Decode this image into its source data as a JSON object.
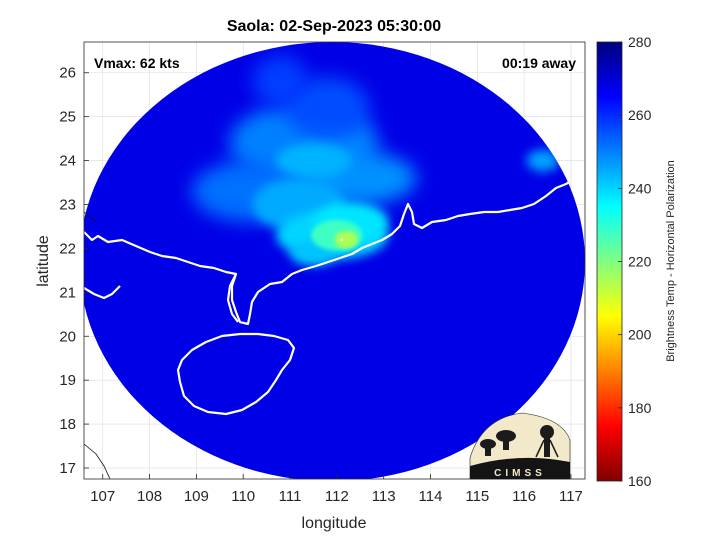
{
  "chart_data": {
    "type": "heatmap",
    "title": "Saola: 02-Sep-2023 05:30:00",
    "xlabel": "longitude",
    "ylabel": "latitude",
    "xlim": [
      106.6,
      117.3
    ],
    "ylim": [
      16.75,
      26.7
    ],
    "xticks": [
      "107",
      "108",
      "109",
      "110",
      "111",
      "112",
      "113",
      "114",
      "115",
      "116",
      "117"
    ],
    "yticks": [
      "17",
      "18",
      "19",
      "20",
      "21",
      "22",
      "23",
      "24",
      "25",
      "26"
    ],
    "grid": true,
    "annotations": {
      "vmax": "Vmax: 62 kts",
      "time_away": "00:19 away"
    },
    "colorbar": {
      "label": "Brightness Temp - Horizontal Polarization",
      "min": 160,
      "max": 280,
      "ticks": [
        "160",
        "180",
        "200",
        "220",
        "240",
        "260",
        "280"
      ],
      "colormap": [
        "#800000",
        "#ff0000",
        "#ff8000",
        "#ffff00",
        "#80ff80",
        "#00ffff",
        "#0080ff",
        "#0000ff",
        "#000080"
      ]
    },
    "swath": {
      "center": [
        111.9,
        21.7
      ],
      "radius_lon": 5.4,
      "radius_lat": 5.0,
      "background_temp": 268
    },
    "storm_center": [
      112.1,
      22.2
    ],
    "storm_center_min_temp": 215,
    "logo_text": "CIMSS"
  },
  "colors": {
    "background_blue": "#1a2ee0",
    "coast": "#ffffff",
    "axis": "#262626",
    "grid": "#dcdcdc"
  }
}
